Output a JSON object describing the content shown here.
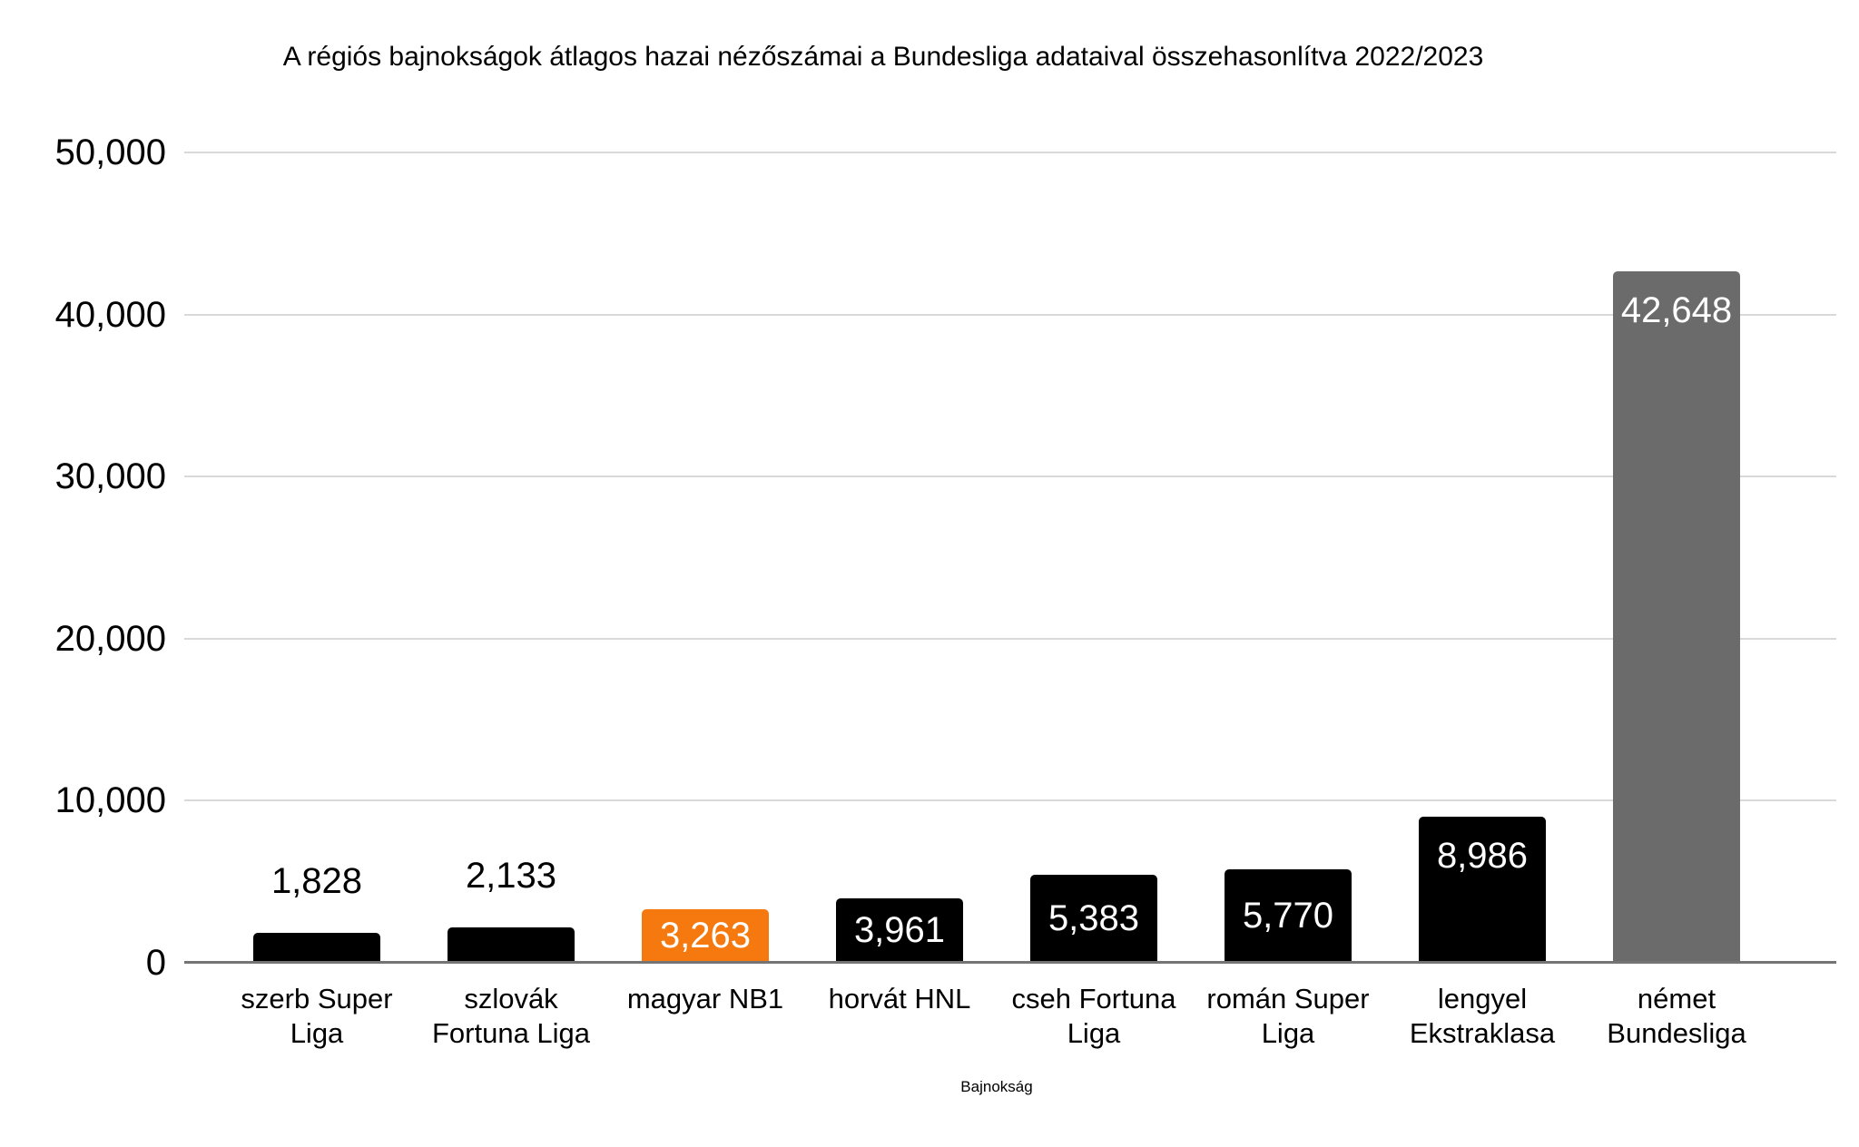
{
  "chart_data": {
    "type": "bar",
    "title": "A régiós bajnokságok átlagos hazai nézőszámai a Bundesliga adataival összehasonlítva 2022/2023",
    "xlabel": "Bajnokság",
    "ylabel": "",
    "ylim": [
      0,
      50000
    ],
    "ytick_interval": 10000,
    "ytick_labels": [
      "0",
      "10,000",
      "20,000",
      "30,000",
      "40,000",
      "50,000"
    ],
    "grid": true,
    "legend": "none",
    "categories": [
      "szerb Super Liga",
      "szlovák Fortuna Liga",
      "magyar NB1",
      "horvát HNL",
      "cseh Fortuna Liga",
      "román Super Liga",
      "lengyel Ekstraklasa",
      "német Bundesliga"
    ],
    "values": [
      1828,
      2133,
      3263,
      3961,
      5383,
      5770,
      8986,
      42648
    ],
    "value_labels": [
      "1,828",
      "2,133",
      "3,263",
      "3,961",
      "5,383",
      "5,770",
      "8,986",
      "42,648"
    ],
    "bar_colors": [
      "#000000",
      "#000000",
      "#f5790f",
      "#000000",
      "#000000",
      "#000000",
      "#000000",
      "#6b6b6b"
    ],
    "colors": {
      "default_bar": "#000000",
      "highlight_bar": "#f5790f",
      "comparison_bar": "#6b6b6b",
      "gridline": "#d9d9d9",
      "axis_line": "#747474",
      "label_outside": "#000000",
      "label_inside": "#ffffff"
    }
  }
}
